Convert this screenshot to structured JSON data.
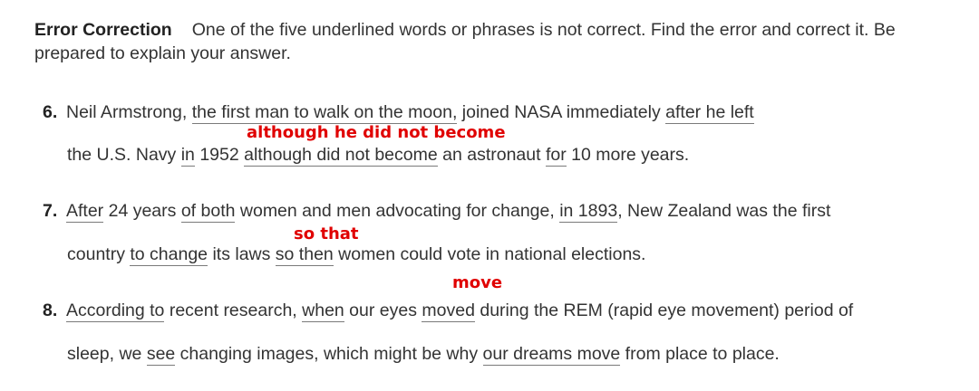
{
  "instructions": {
    "heading": "Error Correction",
    "text": "One of the five underlined words or phrases is not correct. Find the error and correct it. Be prepared to explain your answer."
  },
  "items": [
    {
      "number": "6.",
      "line1": [
        "Neil Armstrong, ",
        "the first man to walk on the moon,",
        " joined NASA immediately ",
        "after he left"
      ],
      "line2": [
        "the U.S. Navy ",
        "in",
        " 1952 ",
        "although did not become",
        " an astronaut ",
        "for",
        " 10 more years."
      ],
      "correction": "although he did not become"
    },
    {
      "number": "7.",
      "line1": [
        "After",
        " 24 years ",
        "of both",
        " women and men advocating for change, ",
        "in 1893",
        ", New Zealand was the first"
      ],
      "line2": [
        "country ",
        "to change",
        " its laws ",
        "so then",
        " women could vote in national elections."
      ],
      "correction": "so that"
    },
    {
      "number": "8.",
      "line1": [
        "According to",
        " recent research, ",
        "when",
        " our eyes ",
        "moved",
        " during the REM (rapid eye movement) period of"
      ],
      "line2": [
        "sleep, we ",
        "see",
        " changing images, which might be why ",
        "our dreams move",
        " from place to place."
      ],
      "correction": "move"
    }
  ]
}
